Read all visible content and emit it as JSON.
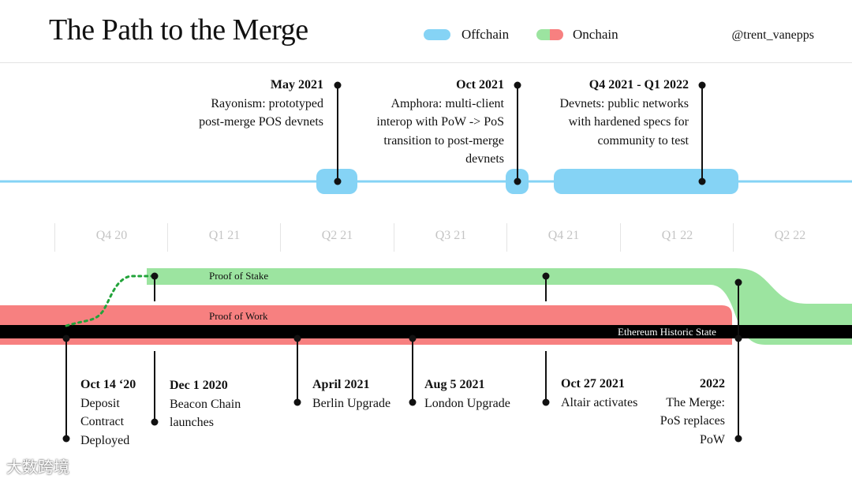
{
  "title": "The Path to the Merge",
  "legend": {
    "offchain_label": "Offchain",
    "onchain_label": "Onchain",
    "offchain_color": "#85d3f5",
    "onchain_colors": [
      "#9ce4a0",
      "#f78080"
    ]
  },
  "handle": "@trent_vanepps",
  "quarters": [
    "Q4 20",
    "Q1 21",
    "Q2 21",
    "Q3 21",
    "Q4 21",
    "Q1 22",
    "Q2 22"
  ],
  "offchain_events": [
    {
      "date": "May 2021",
      "lines": [
        "Rayonism: prototyped",
        "post-merge POS devnets"
      ]
    },
    {
      "date": "Oct 2021",
      "lines": [
        "Amphora: multi-client",
        "interop with PoW -> PoS",
        "transition to post-merge",
        "devnets"
      ]
    },
    {
      "date": "Q4 2021 - Q1 2022",
      "lines": [
        "Devnets: public networks",
        "with hardened specs for",
        "community to test"
      ]
    }
  ],
  "bands": {
    "pos_label": "Proof of Stake",
    "pow_label": "Proof of Work",
    "history_label": "Ethereum Historic State",
    "pos_color": "#9ce4a0",
    "pow_color": "#f78080",
    "history_color": "#000000"
  },
  "onchain_events": [
    {
      "date": "Oct 14 ‘20",
      "lines": [
        "Deposit",
        "Contract",
        "Deployed"
      ]
    },
    {
      "date": "Dec 1 2020",
      "lines": [
        "Beacon Chain",
        "launches"
      ]
    },
    {
      "date": "April 2021",
      "lines": [
        "Berlin Upgrade"
      ]
    },
    {
      "date": "Aug 5 2021",
      "lines": [
        "London Upgrade"
      ]
    },
    {
      "date": "Oct 27 2021",
      "lines": [
        "Altair activates"
      ]
    },
    {
      "date": "2022",
      "lines": [
        "The Merge:",
        "PoS replaces",
        "PoW"
      ]
    }
  ],
  "watermark": "大数跨境"
}
